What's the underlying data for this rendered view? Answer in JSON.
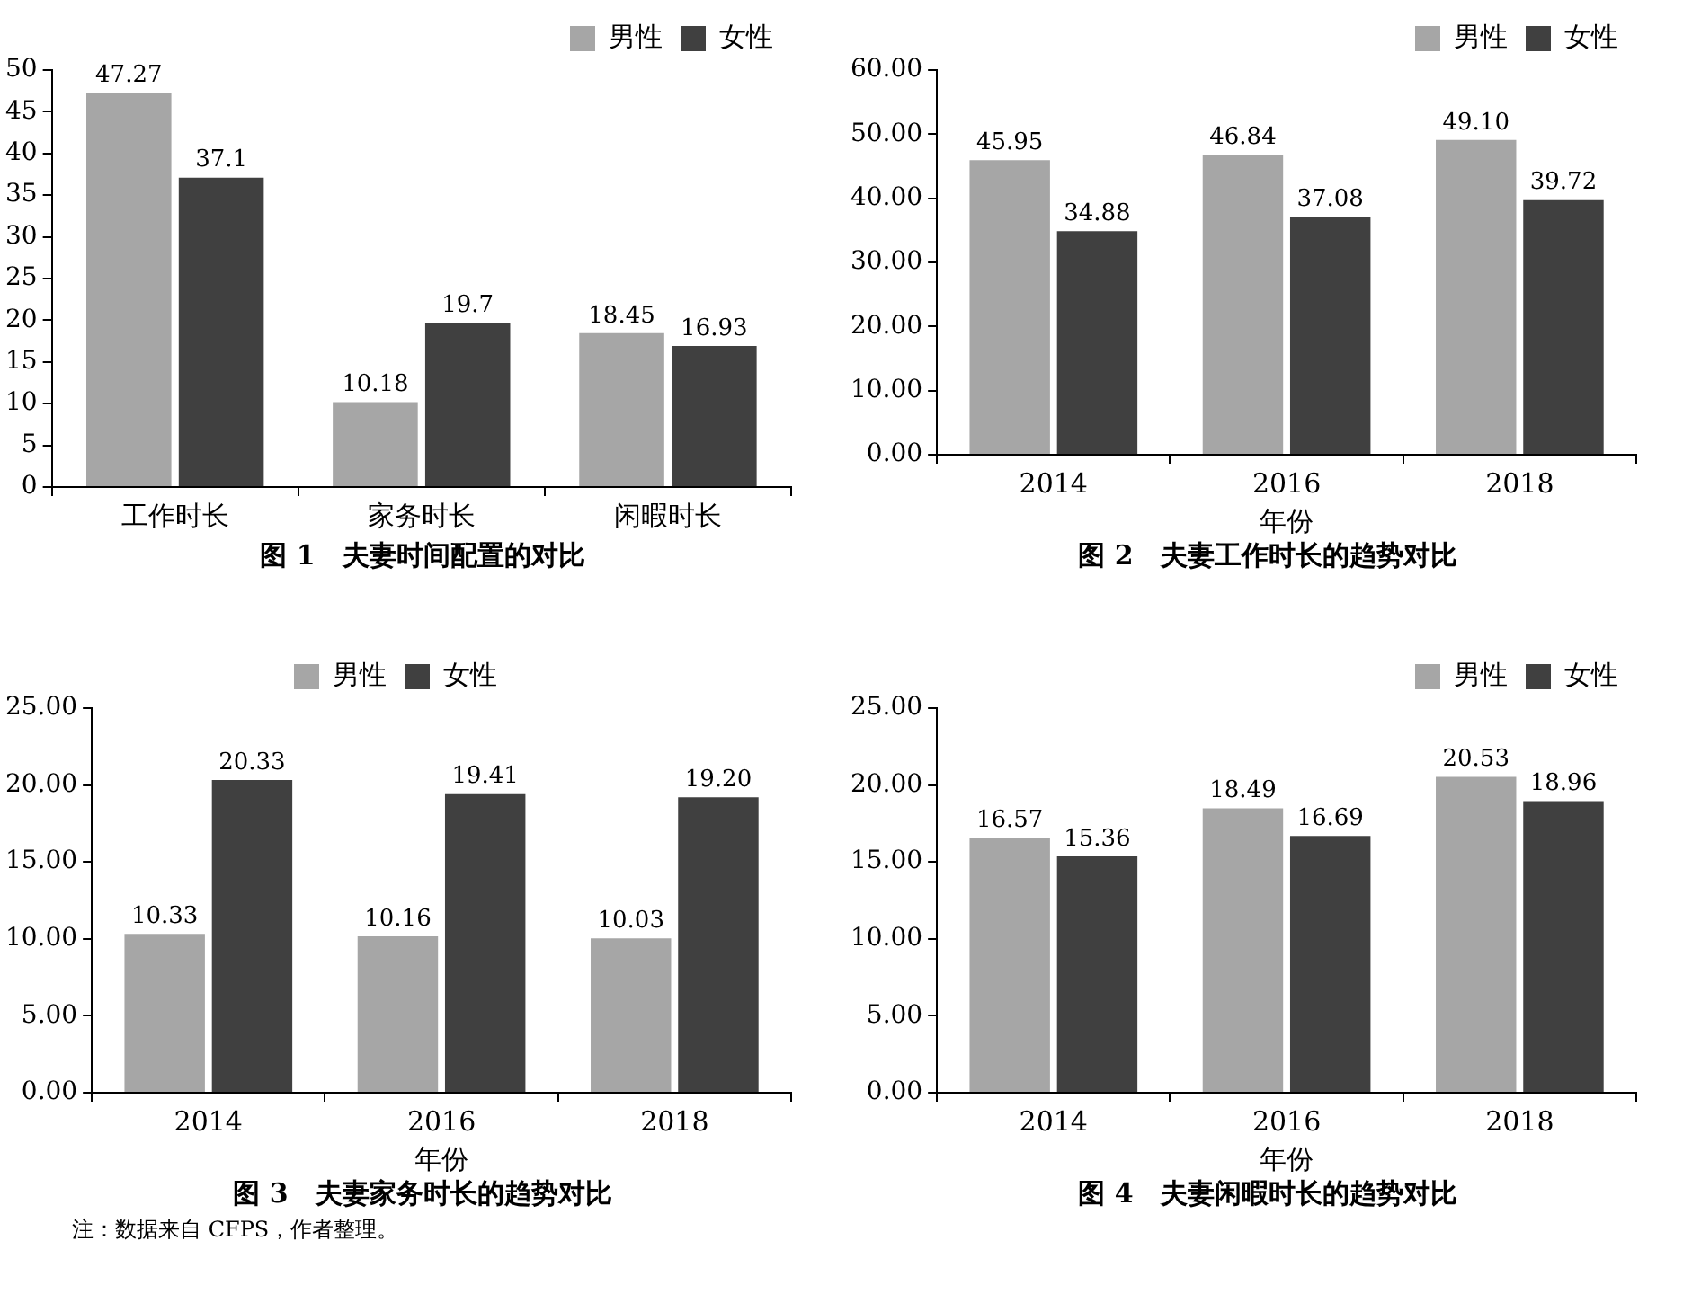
{
  "chart_data": [
    {
      "type": "bar",
      "title": "图 1　夫妻时间配置的对比",
      "categories": [
        "工作时长",
        "家务时长",
        "闲暇时长"
      ],
      "series": [
        {
          "name": "男性",
          "color": "#a6a6a6",
          "values": [
            47.27,
            10.18,
            18.45
          ],
          "value_labels": [
            "47.27",
            "10.18",
            "18.45"
          ]
        },
        {
          "name": "女性",
          "color": "#404040",
          "values": [
            37.1,
            19.7,
            16.93
          ],
          "value_labels": [
            "37.1",
            "19.7",
            "16.93"
          ]
        }
      ],
      "ylim": [
        0,
        50
      ],
      "yticks": [
        0,
        5,
        10,
        15,
        20,
        25,
        30,
        35,
        40,
        45,
        50
      ],
      "legend": "top right"
    },
    {
      "type": "bar",
      "title": "图 2　夫妻工作时长的趋势对比",
      "xlabel": "年份",
      "categories": [
        "2014",
        "2016",
        "2018"
      ],
      "series": [
        {
          "name": "男性",
          "color": "#a6a6a6",
          "values": [
            45.95,
            46.84,
            49.1
          ],
          "value_labels": [
            "45.95",
            "46.84",
            "49.10"
          ]
        },
        {
          "name": "女性",
          "color": "#404040",
          "values": [
            34.88,
            37.08,
            39.72
          ],
          "value_labels": [
            "34.88",
            "37.08",
            "39.72"
          ]
        }
      ],
      "ylim": [
        0,
        60
      ],
      "yticks": [
        {
          "value": 0,
          "label": "0.00"
        },
        {
          "value": 10,
          "label": "10.00"
        },
        {
          "value": 20,
          "label": "20.00"
        },
        {
          "value": 30,
          "label": "30.00"
        },
        {
          "value": 40,
          "label": "40.00"
        },
        {
          "value": 50,
          "label": "50.00"
        },
        {
          "value": 60,
          "label": "60.00"
        }
      ],
      "legend": "top right"
    },
    {
      "type": "bar",
      "title": "图 3　夫妻家务时长的趋势对比",
      "xlabel": "年份",
      "categories": [
        "2014",
        "2016",
        "2018"
      ],
      "series": [
        {
          "name": "男性",
          "color": "#a6a6a6",
          "values": [
            10.33,
            10.16,
            10.03
          ],
          "value_labels": [
            "10.33",
            "10.16",
            "10.03"
          ]
        },
        {
          "name": "女性",
          "color": "#404040",
          "values": [
            20.33,
            19.41,
            19.2
          ],
          "value_labels": [
            "20.33",
            "19.41",
            "19.20"
          ]
        }
      ],
      "ylim": [
        0,
        25
      ],
      "yticks": [
        {
          "value": 0,
          "label": "0.00"
        },
        {
          "value": 5,
          "label": "5.00"
        },
        {
          "value": 10,
          "label": "10.00"
        },
        {
          "value": 15,
          "label": "15.00"
        },
        {
          "value": 20,
          "label": "20.00"
        },
        {
          "value": 25,
          "label": "25.00"
        }
      ],
      "legend": "top",
      "annotations": [
        "注：数据来自 CFPS，作者整理。"
      ]
    },
    {
      "type": "bar",
      "title": "图 4　夫妻闲暇时长的趋势对比",
      "xlabel": "年份",
      "categories": [
        "2014",
        "2016",
        "2018"
      ],
      "series": [
        {
          "name": "男性",
          "color": "#a6a6a6",
          "values": [
            16.57,
            18.49,
            20.53
          ],
          "value_labels": [
            "16.57",
            "18.49",
            "20.53"
          ]
        },
        {
          "name": "女性",
          "color": "#404040",
          "values": [
            15.36,
            16.69,
            18.96
          ],
          "value_labels": [
            "15.36",
            "16.69",
            "18.96"
          ]
        }
      ],
      "ylim": [
        0,
        25
      ],
      "yticks": [
        {
          "value": 0,
          "label": "0.00"
        },
        {
          "value": 5,
          "label": "5.00"
        },
        {
          "value": 10,
          "label": "10.00"
        },
        {
          "value": 15,
          "label": "15.00"
        },
        {
          "value": 20,
          "label": "20.00"
        },
        {
          "value": 25,
          "label": "25.00"
        }
      ],
      "legend": "top right"
    }
  ]
}
